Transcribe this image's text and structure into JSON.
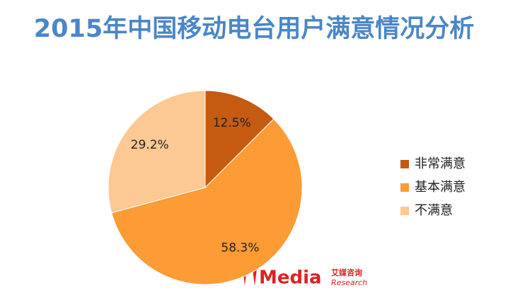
{
  "chart_data": {
    "type": "pie",
    "title": "2015年中国移动电台用户满意情况分析",
    "categories": [
      "非常满意",
      "基本满意",
      "不满意"
    ],
    "values": [
      12.5,
      58.3,
      29.2
    ],
    "value_labels": [
      "12.5%",
      "58.3%",
      "29.2%"
    ],
    "colors": [
      "#c55a11",
      "#fd9b35",
      "#fcc894"
    ],
    "legend": "right"
  },
  "watermark": {
    "brand": "Media",
    "cn": "艾媒咨询",
    "en": "Research"
  }
}
